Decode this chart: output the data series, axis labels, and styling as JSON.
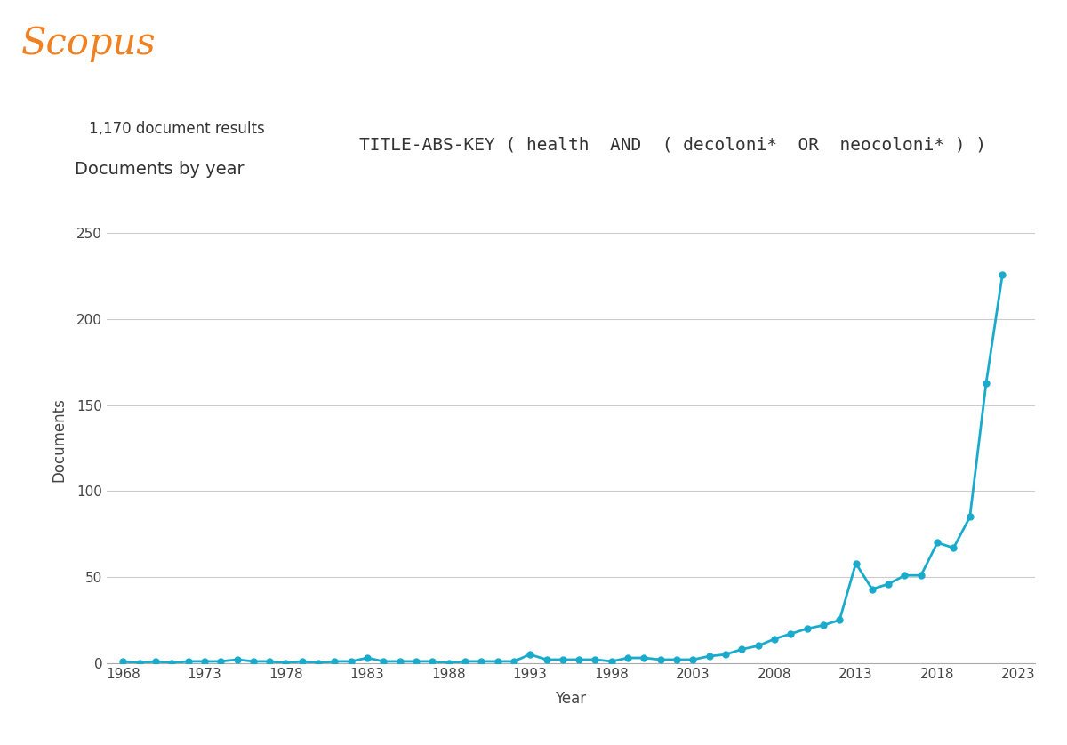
{
  "years": [
    1968,
    1969,
    1970,
    1971,
    1972,
    1973,
    1974,
    1975,
    1976,
    1977,
    1978,
    1979,
    1980,
    1981,
    1982,
    1983,
    1984,
    1985,
    1986,
    1987,
    1988,
    1989,
    1990,
    1991,
    1992,
    1993,
    1994,
    1995,
    1996,
    1997,
    1998,
    1999,
    2000,
    2001,
    2002,
    2003,
    2004,
    2005,
    2006,
    2007,
    2008,
    2009,
    2010,
    2011,
    2012,
    2013,
    2014,
    2015,
    2016,
    2017,
    2018,
    2019,
    2020,
    2021,
    2022
  ],
  "values": [
    1,
    0,
    1,
    0,
    1,
    1,
    1,
    2,
    1,
    1,
    0,
    1,
    0,
    1,
    1,
    3,
    1,
    1,
    1,
    1,
    0,
    1,
    1,
    1,
    1,
    5,
    2,
    2,
    2,
    2,
    1,
    3,
    3,
    2,
    2,
    2,
    4,
    5,
    8,
    10,
    14,
    17,
    20,
    22,
    25,
    58,
    43,
    46,
    51,
    51,
    70,
    67,
    85,
    163,
    226
  ],
  "line_color": "#1AABCC",
  "marker_color": "#1AABCC",
  "marker_size": 5,
  "line_width": 2.0,
  "ylabel": "Documents",
  "xlabel": "Year",
  "title_label": "Documents by year",
  "result_label": "1,170 document results",
  "query_text": "TITLE-ABS-KEY ( health  AND  ( decoloni*  OR  neocoloni* ) )",
  "scopus_text": "Scopus",
  "scopus_color": "#F08020",
  "ylim": [
    0,
    260
  ],
  "yticks": [
    0,
    50,
    100,
    150,
    200,
    250
  ],
  "xtick_years": [
    1968,
    1973,
    1978,
    1983,
    1988,
    1993,
    1998,
    2003,
    2008,
    2013,
    2018,
    2023
  ],
  "background_color": "#ffffff",
  "grid_color": "#cccccc",
  "axis_text_color": "#444444",
  "title_fontsize": 14,
  "label_fontsize": 12,
  "tick_fontsize": 11
}
